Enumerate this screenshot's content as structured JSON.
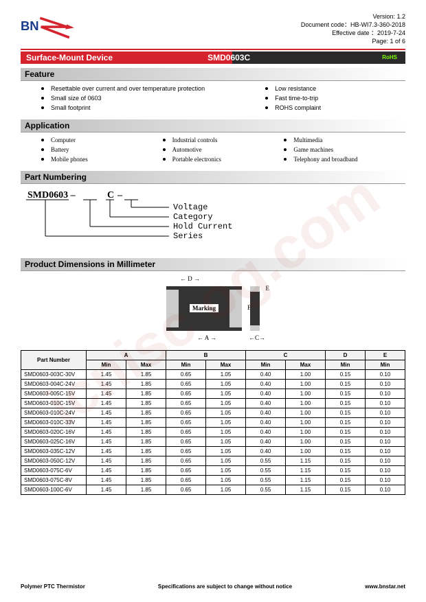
{
  "doc": {
    "version": "Version:  1.2",
    "code": "Document  code：HB-WI7.3-360-2018",
    "date": "Effective date ：2019-7-24",
    "page": "Page:  1  of  6"
  },
  "titlebar": {
    "left": "Surface-Mount Device",
    "mid": "SMD0603C",
    "rohs": "RoHS"
  },
  "sections": {
    "feature": "Feature",
    "application": "Application",
    "partnumbering": "Part Numbering",
    "dimensions": "Product Dimensions in Millimeter"
  },
  "features": {
    "left": [
      "Resettable over current and over temperature protection",
      "Small size of 0603",
      "Small footprint"
    ],
    "right": [
      "Low resistance",
      "Fast time-to-trip",
      "ROHS complaint"
    ]
  },
  "applications": {
    "c1": [
      "Computer",
      "Battery",
      "Mobile phones"
    ],
    "c2": [
      "Industrial controls",
      "Automotive",
      "Portable electronics"
    ],
    "c3": [
      "Multimedia",
      "Game machines",
      "Telephony and broadband"
    ]
  },
  "partnumber": {
    "series": "SMD0603",
    "cat": "C",
    "labels": [
      "Voltage",
      "Category",
      "Hold Current",
      "Series"
    ]
  },
  "dim_diagram": {
    "marking": "Marking"
  },
  "table": {
    "partnum_header": "Part Number",
    "cols": [
      "A",
      "B",
      "C",
      "D",
      "E"
    ],
    "subMin": "Min",
    "subMax": "Max",
    "rows": [
      [
        "SMD0603-003C-30V",
        "1.45",
        "1.85",
        "0.65",
        "1.05",
        "0.40",
        "1.00",
        "0.15",
        "0.10"
      ],
      [
        "SMD0603-004C-24V",
        "1.45",
        "1.85",
        "0.65",
        "1.05",
        "0.40",
        "1.00",
        "0.15",
        "0.10"
      ],
      [
        "SMD0603-005C-15V",
        "1.45",
        "1.85",
        "0.65",
        "1.05",
        "0.40",
        "1.00",
        "0.15",
        "0.10"
      ],
      [
        "SMD0603-010C-15V",
        "1.45",
        "1.85",
        "0.65",
        "1.05",
        "0.40",
        "1.00",
        "0.15",
        "0.10"
      ],
      [
        "SMD0603-010C-24V",
        "1.45",
        "1.85",
        "0.65",
        "1.05",
        "0.40",
        "1.00",
        "0.15",
        "0.10"
      ],
      [
        "SMD0603-010C-33V",
        "1.45",
        "1.85",
        "0.65",
        "1.05",
        "0.40",
        "1.00",
        "0.15",
        "0.10"
      ],
      [
        "SMD0603-020C-16V",
        "1.45",
        "1.85",
        "0.65",
        "1.05",
        "0.40",
        "1.00",
        "0.15",
        "0.10"
      ],
      [
        "SMD0603-025C-16V",
        "1.45",
        "1.85",
        "0.65",
        "1.05",
        "0.40",
        "1.00",
        "0.15",
        "0.10"
      ],
      [
        "SMD0603-035C-12V",
        "1.45",
        "1.85",
        "0.65",
        "1.05",
        "0.40",
        "1.00",
        "0.15",
        "0.10"
      ],
      [
        "SMD0603-050C-12V",
        "1.45",
        "1.85",
        "0.65",
        "1.05",
        "0.55",
        "1.15",
        "0.15",
        "0.10"
      ],
      [
        "SMD0603-075C-6V",
        "1.45",
        "1.85",
        "0.65",
        "1.05",
        "0.55",
        "1.15",
        "0.15",
        "0.10"
      ],
      [
        "SMD0603-075C-8V",
        "1.45",
        "1.85",
        "0.65",
        "1.05",
        "0.55",
        "1.15",
        "0.15",
        "0.10"
      ],
      [
        "SMD0603-100C-6V",
        "1.45",
        "1.85",
        "0.65",
        "1.05",
        "0.55",
        "1.15",
        "0.15",
        "0.10"
      ]
    ]
  },
  "footer": {
    "left": "Polymer PTC Thermistor",
    "mid": "Specifications are subject to change without notice",
    "right": "www.bnstar.net"
  },
  "watermark": "icnisc og.com",
  "colors": {
    "brand_red": "#d5232e",
    "header_gray": "#bfbfbf"
  }
}
